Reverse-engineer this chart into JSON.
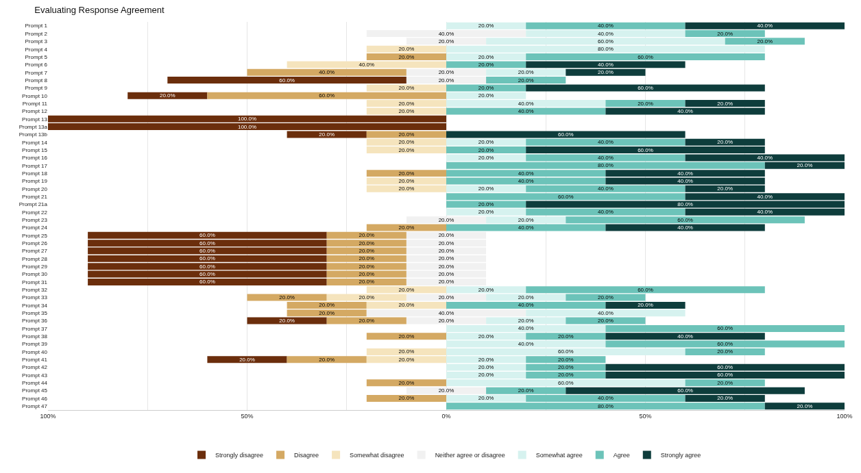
{
  "chart_data": {
    "type": "bar",
    "orientation": "horizontal",
    "title": "Evaluating Response Agreement",
    "categories": [
      "Prompt 1",
      "Prompt 2",
      "Prompt 3",
      "Prompt 4",
      "Prompt 5",
      "Prompt 6",
      "Prompt 7",
      "Prompt 8",
      "Prompt 9",
      "Prompt 10",
      "Prompt 11",
      "Prompt 12",
      "Prompt 13",
      "Prompt 13a",
      "Prompt 13b",
      "Prompt 14",
      "Prompt 15",
      "Prompt 16",
      "Prompt 17",
      "Prompt 18",
      "Prompt 19",
      "Prompt 20",
      "Prompt 21",
      "Prompt 21a",
      "Prompt 22",
      "Prompt 23",
      "Prompt 24",
      "Prompt 25",
      "Prompt 26",
      "Prompt 27",
      "Prompt 28",
      "Prompt 29",
      "Prompt 30",
      "Prompt 31",
      "Prompt 32",
      "Prompt 33",
      "Prompt 34",
      "Prompt 35",
      "Prompt 36",
      "Prompt 37",
      "Prompt 38",
      "Prompt 39",
      "Prompt 40",
      "Prompt 41",
      "Prompt 42",
      "Prompt 43",
      "Prompt 44",
      "Prompt 45",
      "Prompt 46",
      "Prompt 47"
    ],
    "series": [
      {
        "name": "Strongly disagree",
        "color": "#6b2e0c",
        "base": [
          null,
          null,
          null,
          null,
          null,
          null,
          null,
          -70,
          null,
          -80,
          null,
          null,
          -100,
          -100,
          -40,
          null,
          null,
          null,
          null,
          null,
          null,
          null,
          null,
          null,
          null,
          null,
          null,
          -90,
          -90,
          -90,
          -90,
          -90,
          -90,
          -90,
          null,
          null,
          null,
          null,
          -50,
          null,
          null,
          null,
          null,
          -60,
          null,
          null,
          null,
          null,
          null,
          null
        ],
        "values": [
          null,
          null,
          null,
          null,
          null,
          null,
          null,
          60,
          null,
          20,
          null,
          null,
          100,
          100,
          20,
          null,
          null,
          null,
          null,
          null,
          null,
          null,
          null,
          null,
          null,
          null,
          null,
          60,
          60,
          60,
          60,
          60,
          60,
          60,
          null,
          null,
          null,
          null,
          20,
          null,
          null,
          null,
          null,
          20,
          null,
          null,
          null,
          null,
          null,
          null
        ],
        "value_labels": [
          null,
          null,
          null,
          null,
          null,
          null,
          null,
          "60.0%",
          null,
          "20.0%",
          null,
          null,
          "100.0%",
          "100.0%",
          "20.0%",
          null,
          null,
          null,
          null,
          null,
          null,
          null,
          null,
          null,
          null,
          null,
          null,
          "60.0%",
          "60.0%",
          "60.0%",
          "60.0%",
          "60.0%",
          "60.0%",
          "60.0%",
          null,
          null,
          null,
          null,
          "20.0%",
          null,
          null,
          null,
          null,
          "20.0%",
          null,
          null,
          null,
          null,
          null,
          null
        ]
      },
      {
        "name": "Disagree",
        "color": "#d4a963",
        "base": [
          null,
          null,
          null,
          null,
          -20,
          null,
          -50,
          null,
          null,
          -60,
          null,
          null,
          null,
          null,
          -20,
          null,
          null,
          null,
          null,
          -20,
          null,
          null,
          null,
          null,
          null,
          null,
          -20,
          -30,
          -30,
          -30,
          -30,
          -30,
          -30,
          -30,
          null,
          -50,
          -40,
          -40,
          -30,
          null,
          -20,
          null,
          null,
          -40,
          null,
          null,
          -20,
          null,
          -20,
          null
        ],
        "values": [
          null,
          null,
          null,
          null,
          20,
          null,
          40,
          null,
          null,
          60,
          null,
          null,
          null,
          null,
          20,
          null,
          null,
          null,
          null,
          20,
          null,
          null,
          null,
          null,
          null,
          null,
          20,
          20,
          20,
          20,
          20,
          20,
          20,
          20,
          null,
          20,
          20,
          20,
          20,
          null,
          20,
          null,
          null,
          20,
          null,
          null,
          20,
          null,
          20,
          null
        ],
        "value_labels": [
          null,
          null,
          null,
          null,
          "20.0%",
          null,
          "40.0%",
          null,
          null,
          "60.0%",
          null,
          null,
          null,
          null,
          "20.0%",
          null,
          null,
          null,
          null,
          "20.0%",
          null,
          null,
          null,
          null,
          null,
          null,
          "20.0%",
          "20.0%",
          "20.0%",
          "20.0%",
          "20.0%",
          "20.0%",
          "20.0%",
          "20.0%",
          null,
          "20.0%",
          "20.0%",
          "20.0%",
          "20.0%",
          null,
          "20.0%",
          null,
          null,
          "20.0%",
          null,
          null,
          "20.0%",
          null,
          "20.0%",
          null
        ]
      },
      {
        "name": "Somewhat disagree",
        "color": "#f5e4bd",
        "base": [
          null,
          null,
          null,
          -20,
          null,
          -40,
          null,
          null,
          -20,
          null,
          -20,
          -20,
          null,
          null,
          null,
          -20,
          -20,
          null,
          null,
          null,
          -20,
          -20,
          null,
          null,
          null,
          null,
          null,
          null,
          null,
          null,
          null,
          null,
          null,
          null,
          -20,
          -30,
          -20,
          null,
          null,
          null,
          null,
          null,
          -20,
          -20,
          null,
          null,
          null,
          null,
          null,
          null
        ],
        "values": [
          null,
          null,
          null,
          20,
          null,
          40,
          null,
          null,
          20,
          null,
          20,
          20,
          null,
          null,
          null,
          20,
          20,
          null,
          null,
          null,
          20,
          20,
          null,
          null,
          null,
          null,
          null,
          null,
          null,
          null,
          null,
          null,
          null,
          null,
          20,
          20,
          20,
          null,
          null,
          null,
          null,
          null,
          20,
          20,
          null,
          null,
          null,
          null,
          null,
          null
        ],
        "value_labels": [
          null,
          null,
          null,
          "20.0%",
          null,
          "40.0%",
          null,
          null,
          "20.0%",
          null,
          "20.0%",
          "20.0%",
          null,
          null,
          null,
          "20.0%",
          "20.0%",
          null,
          null,
          null,
          "20.0%",
          "20.0%",
          null,
          null,
          null,
          null,
          null,
          null,
          null,
          null,
          null,
          null,
          null,
          null,
          "20.0%",
          "20.0%",
          "20.0%",
          null,
          null,
          null,
          null,
          null,
          "20.0%",
          "20.0%",
          null,
          null,
          null,
          null,
          null,
          null
        ]
      },
      {
        "name": "Neither agree or disagree",
        "color": "#f1f1f1",
        "base": [
          null,
          -20,
          -10,
          null,
          null,
          null,
          -10,
          -10,
          null,
          null,
          null,
          null,
          null,
          null,
          null,
          null,
          null,
          null,
          null,
          null,
          null,
          null,
          null,
          null,
          null,
          -10,
          null,
          -10,
          -10,
          -10,
          -10,
          -10,
          -10,
          -10,
          null,
          -10,
          null,
          -20,
          -10,
          null,
          null,
          null,
          null,
          null,
          null,
          null,
          null,
          -10,
          null,
          null
        ],
        "values": [
          null,
          40,
          20,
          null,
          null,
          null,
          20,
          20,
          null,
          null,
          null,
          null,
          null,
          null,
          null,
          null,
          null,
          null,
          null,
          null,
          null,
          null,
          null,
          null,
          null,
          20,
          null,
          20,
          20,
          20,
          20,
          20,
          20,
          20,
          null,
          20,
          null,
          40,
          20,
          null,
          null,
          null,
          null,
          null,
          null,
          null,
          null,
          20,
          null,
          null
        ],
        "value_labels": [
          null,
          "40.0%",
          "20.0%",
          null,
          null,
          null,
          "20.0%",
          "20.0%",
          null,
          null,
          null,
          null,
          null,
          null,
          null,
          null,
          null,
          null,
          null,
          null,
          null,
          null,
          null,
          null,
          null,
          "20.0%",
          null,
          "20.0%",
          "20.0%",
          "20.0%",
          "20.0%",
          "20.0%",
          "20.0%",
          "20.0%",
          null,
          "20.0%",
          null,
          "40.0%",
          "20.0%",
          null,
          null,
          null,
          null,
          null,
          null,
          null,
          null,
          "20.0%",
          null,
          null
        ]
      },
      {
        "name": "Somewhat agree",
        "color": "#d6f2ef",
        "base": [
          0,
          20,
          10,
          0,
          0,
          null,
          10,
          null,
          null,
          0,
          0,
          null,
          null,
          null,
          null,
          0,
          null,
          0,
          null,
          null,
          null,
          0,
          null,
          null,
          0,
          10,
          null,
          null,
          null,
          null,
          null,
          null,
          null,
          null,
          0,
          10,
          null,
          20,
          10,
          0,
          0,
          0,
          0,
          0,
          0,
          0,
          0,
          null,
          0,
          null
        ],
        "values": [
          20,
          40,
          60,
          80,
          20,
          null,
          20,
          null,
          null,
          20,
          40,
          null,
          null,
          null,
          null,
          20,
          null,
          20,
          null,
          null,
          null,
          20,
          null,
          null,
          20,
          20,
          null,
          null,
          null,
          null,
          null,
          null,
          null,
          null,
          20,
          20,
          null,
          40,
          20,
          40,
          20,
          40,
          60,
          20,
          20,
          20,
          60,
          null,
          20,
          null
        ],
        "value_labels": [
          "20.0%",
          "40.0%",
          "60.0%",
          "80.0%",
          "20.0%",
          null,
          "20.0%",
          null,
          null,
          "20.0%",
          "40.0%",
          null,
          null,
          null,
          null,
          "20.0%",
          null,
          "20.0%",
          null,
          null,
          null,
          "20.0%",
          null,
          null,
          "20.0%",
          "20.0%",
          null,
          null,
          null,
          null,
          null,
          null,
          null,
          null,
          "20.0%",
          "20.0%",
          null,
          "40.0%",
          "20.0%",
          "40.0%",
          "20.0%",
          "40.0%",
          "60.0%",
          "20.0%",
          "20.0%",
          "20.0%",
          "60.0%",
          null,
          "20.0%",
          null
        ]
      },
      {
        "name": "Agree",
        "color": "#6cc3b9",
        "base": [
          20,
          60,
          70,
          null,
          20,
          0,
          null,
          10,
          0,
          null,
          40,
          0,
          null,
          null,
          null,
          20,
          0,
          20,
          0,
          0,
          0,
          20,
          0,
          0,
          20,
          30,
          0,
          null,
          null,
          null,
          null,
          null,
          null,
          null,
          20,
          30,
          0,
          null,
          30,
          40,
          20,
          40,
          60,
          20,
          20,
          20,
          60,
          10,
          20,
          0
        ],
        "values": [
          40,
          20,
          20,
          null,
          60,
          20,
          null,
          20,
          20,
          null,
          20,
          40,
          null,
          null,
          null,
          40,
          20,
          40,
          80,
          40,
          40,
          40,
          60,
          20,
          40,
          60,
          40,
          null,
          null,
          null,
          null,
          null,
          null,
          null,
          60,
          20,
          40,
          null,
          20,
          60,
          20,
          60,
          20,
          20,
          20,
          20,
          20,
          20,
          40,
          80
        ],
        "value_labels": [
          "40.0%",
          "20.0%",
          "20.0%",
          null,
          "60.0%",
          "20.0%",
          null,
          "20.0%",
          "20.0%",
          null,
          "20.0%",
          "40.0%",
          null,
          null,
          null,
          "40.0%",
          "20.0%",
          "40.0%",
          "80.0%",
          "40.0%",
          "40.0%",
          "40.0%",
          "60.0%",
          "20.0%",
          "40.0%",
          "60.0%",
          "40.0%",
          null,
          null,
          null,
          null,
          null,
          null,
          null,
          "60.0%",
          "20.0%",
          "40.0%",
          null,
          "20.0%",
          "60.0%",
          "20.0%",
          "60.0%",
          "20.0%",
          "20.0%",
          "20.0%",
          "20.0%",
          "20.0%",
          "20.0%",
          "40.0%",
          "80.0%"
        ]
      },
      {
        "name": "Strongly agree",
        "color": "#0e3d3c",
        "base": [
          60,
          null,
          null,
          null,
          null,
          20,
          30,
          null,
          20,
          null,
          60,
          40,
          null,
          null,
          0,
          60,
          20,
          60,
          80,
          40,
          40,
          60,
          60,
          20,
          60,
          null,
          40,
          null,
          null,
          null,
          null,
          null,
          null,
          null,
          null,
          null,
          40,
          null,
          null,
          null,
          40,
          null,
          null,
          null,
          40,
          40,
          null,
          30,
          60,
          80
        ],
        "values": [
          40,
          null,
          null,
          null,
          null,
          40,
          20,
          null,
          60,
          null,
          20,
          40,
          null,
          null,
          60,
          20,
          60,
          40,
          20,
          40,
          40,
          20,
          40,
          80,
          40,
          null,
          40,
          null,
          null,
          null,
          null,
          null,
          null,
          null,
          null,
          null,
          20,
          null,
          null,
          null,
          40,
          null,
          null,
          null,
          60,
          60,
          null,
          60,
          20,
          20
        ],
        "value_labels": [
          "40.0%",
          null,
          null,
          null,
          null,
          "40.0%",
          "20.0%",
          null,
          "60.0%",
          null,
          "20.0%",
          "40.0%",
          null,
          null,
          "60.0%",
          "20.0%",
          "60.0%",
          "40.0%",
          "20.0%",
          "40.0%",
          "40.0%",
          "20.0%",
          "40.0%",
          "80.0%",
          "40.0%",
          null,
          "40.0%",
          null,
          null,
          null,
          null,
          null,
          null,
          null,
          null,
          null,
          "20.0%",
          null,
          null,
          null,
          "40.0%",
          null,
          null,
          null,
          "60.0%",
          "60.0%",
          null,
          "60.0%",
          "20.0%",
          "20.0%"
        ]
      }
    ],
    "xlim": [
      -100,
      100
    ],
    "xticks": [
      {
        "value": -100,
        "label": "100%"
      },
      {
        "value": -75,
        "label": null
      },
      {
        "value": -50,
        "label": "50%"
      },
      {
        "value": -25,
        "label": null
      },
      {
        "value": 0,
        "label": "0%"
      },
      {
        "value": 25,
        "label": null
      },
      {
        "value": 50,
        "label": "50%"
      },
      {
        "value": 75,
        "label": null
      },
      {
        "value": 100,
        "label": "100%"
      }
    ],
    "grid": "x",
    "legend": "bottom"
  }
}
